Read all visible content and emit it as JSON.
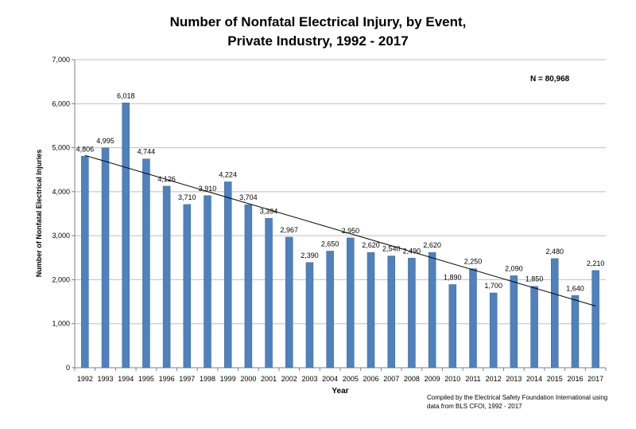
{
  "title_line1": "Number of Nonfatal Electrical Injury, by Event,",
  "title_line2": "Private Industry, 1992 - 2017",
  "annotation": "N = 80,968",
  "source_line1": "Compiled by the Electrical Safety Foundation International using",
  "source_line2": "data from BLS CFOI, 1992 - 2017",
  "colors": {
    "bar": "#4F81BD",
    "bar_edge": "#3A6496",
    "grid": "#BFBFBF",
    "trend": "#000000"
  },
  "chart_data": {
    "type": "bar",
    "xlabel": "Year",
    "ylabel": "Number of Nonfatal Electrical Injuries",
    "ylim": [
      0,
      7000
    ],
    "yticks": [
      0,
      1000,
      2000,
      3000,
      4000,
      5000,
      6000,
      7000
    ],
    "ytick_labels": [
      "0",
      "1,000",
      "2,000",
      "3,000",
      "4,000",
      "5,000",
      "6,000",
      "7,000"
    ],
    "grid": true,
    "trendline": "linear",
    "categories": [
      "1992",
      "1993",
      "1994",
      "1995",
      "1996",
      "1997",
      "1998",
      "1999",
      "2000",
      "2001",
      "2002",
      "2003",
      "2004",
      "2005",
      "2006",
      "2007",
      "2008",
      "2009",
      "2010",
      "2011",
      "2012",
      "2013",
      "2014",
      "2015",
      "2016",
      "2017"
    ],
    "values": [
      4806,
      4995,
      6018,
      4744,
      4126,
      3710,
      3910,
      4224,
      3704,
      3394,
      2967,
      2390,
      2650,
      2950,
      2620,
      2540,
      2490,
      2620,
      1890,
      2250,
      1700,
      2090,
      1850,
      2480,
      1640,
      2210
    ],
    "data_labels": [
      "4,806",
      "4,995",
      "6,018",
      "4,744",
      "4,126",
      "3,710",
      "3,910",
      "4,224",
      "3,704",
      "3,394",
      "2,967",
      "2,390",
      "2,650",
      "2,950",
      "2,620",
      "2,540",
      "2,490",
      "2,620",
      "1,890",
      "2,250",
      "1,700",
      "2,090",
      "1,850",
      "2,480",
      "1,640",
      "2,210"
    ]
  }
}
